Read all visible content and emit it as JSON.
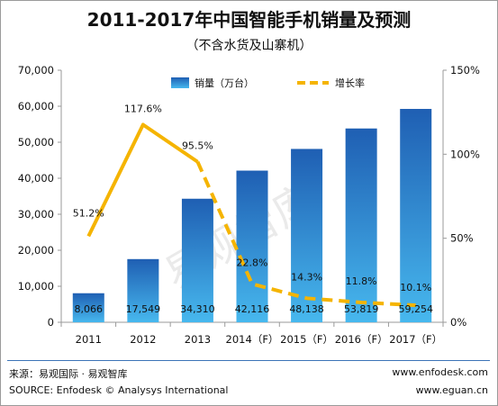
{
  "chart_data": {
    "type": "bar",
    "title": "2011-2017年中国智能手机销量及预测",
    "subtitle": "（不含水货及山寨机）",
    "categories": [
      "2011",
      "2012",
      "2013",
      "2014（F）",
      "2015（F）",
      "2016（F）",
      "2017（F）"
    ],
    "series": [
      {
        "name": "销量（万台）",
        "type": "bar",
        "axis": "left",
        "values": [
          8066,
          17549,
          34310,
          42116,
          48138,
          53819,
          59254
        ],
        "labels": [
          "8,066",
          "17,549",
          "34,310",
          "42,116",
          "48,138",
          "53,819",
          "59,254"
        ]
      },
      {
        "name": "增长率",
        "type": "line",
        "axis": "right",
        "values": [
          51.2,
          117.6,
          95.5,
          22.8,
          14.3,
          11.8,
          10.1
        ],
        "labels": [
          "51.2%",
          "117.6%",
          "95.5%",
          "22.8%",
          "14.3%",
          "11.8%",
          "10.1%"
        ],
        "dashed_from_index": 2
      }
    ],
    "y_left": {
      "lim": [
        0,
        70000
      ],
      "ticks": [
        "0",
        "10,000",
        "20,000",
        "30,000",
        "40,000",
        "50,000",
        "60,000",
        "70,000"
      ]
    },
    "y_right": {
      "lim": [
        0,
        150
      ],
      "ticks": [
        "0%",
        "50%",
        "100%",
        "150%"
      ]
    },
    "legend_position": "top",
    "grid": false,
    "colors": {
      "bar_top": "#1f5fb3",
      "bar_bottom": "#47b8ee",
      "line": "#f5b400",
      "axis": "#9a9a9a"
    }
  },
  "watermark": "易观智库",
  "footer": {
    "source_cn": "来源：易观国际 · 易观智库",
    "source_en": "SOURCE: Enfodesk © Analysys International",
    "url1": "www.enfodesk.com",
    "url2": "www.eguan.cn"
  }
}
